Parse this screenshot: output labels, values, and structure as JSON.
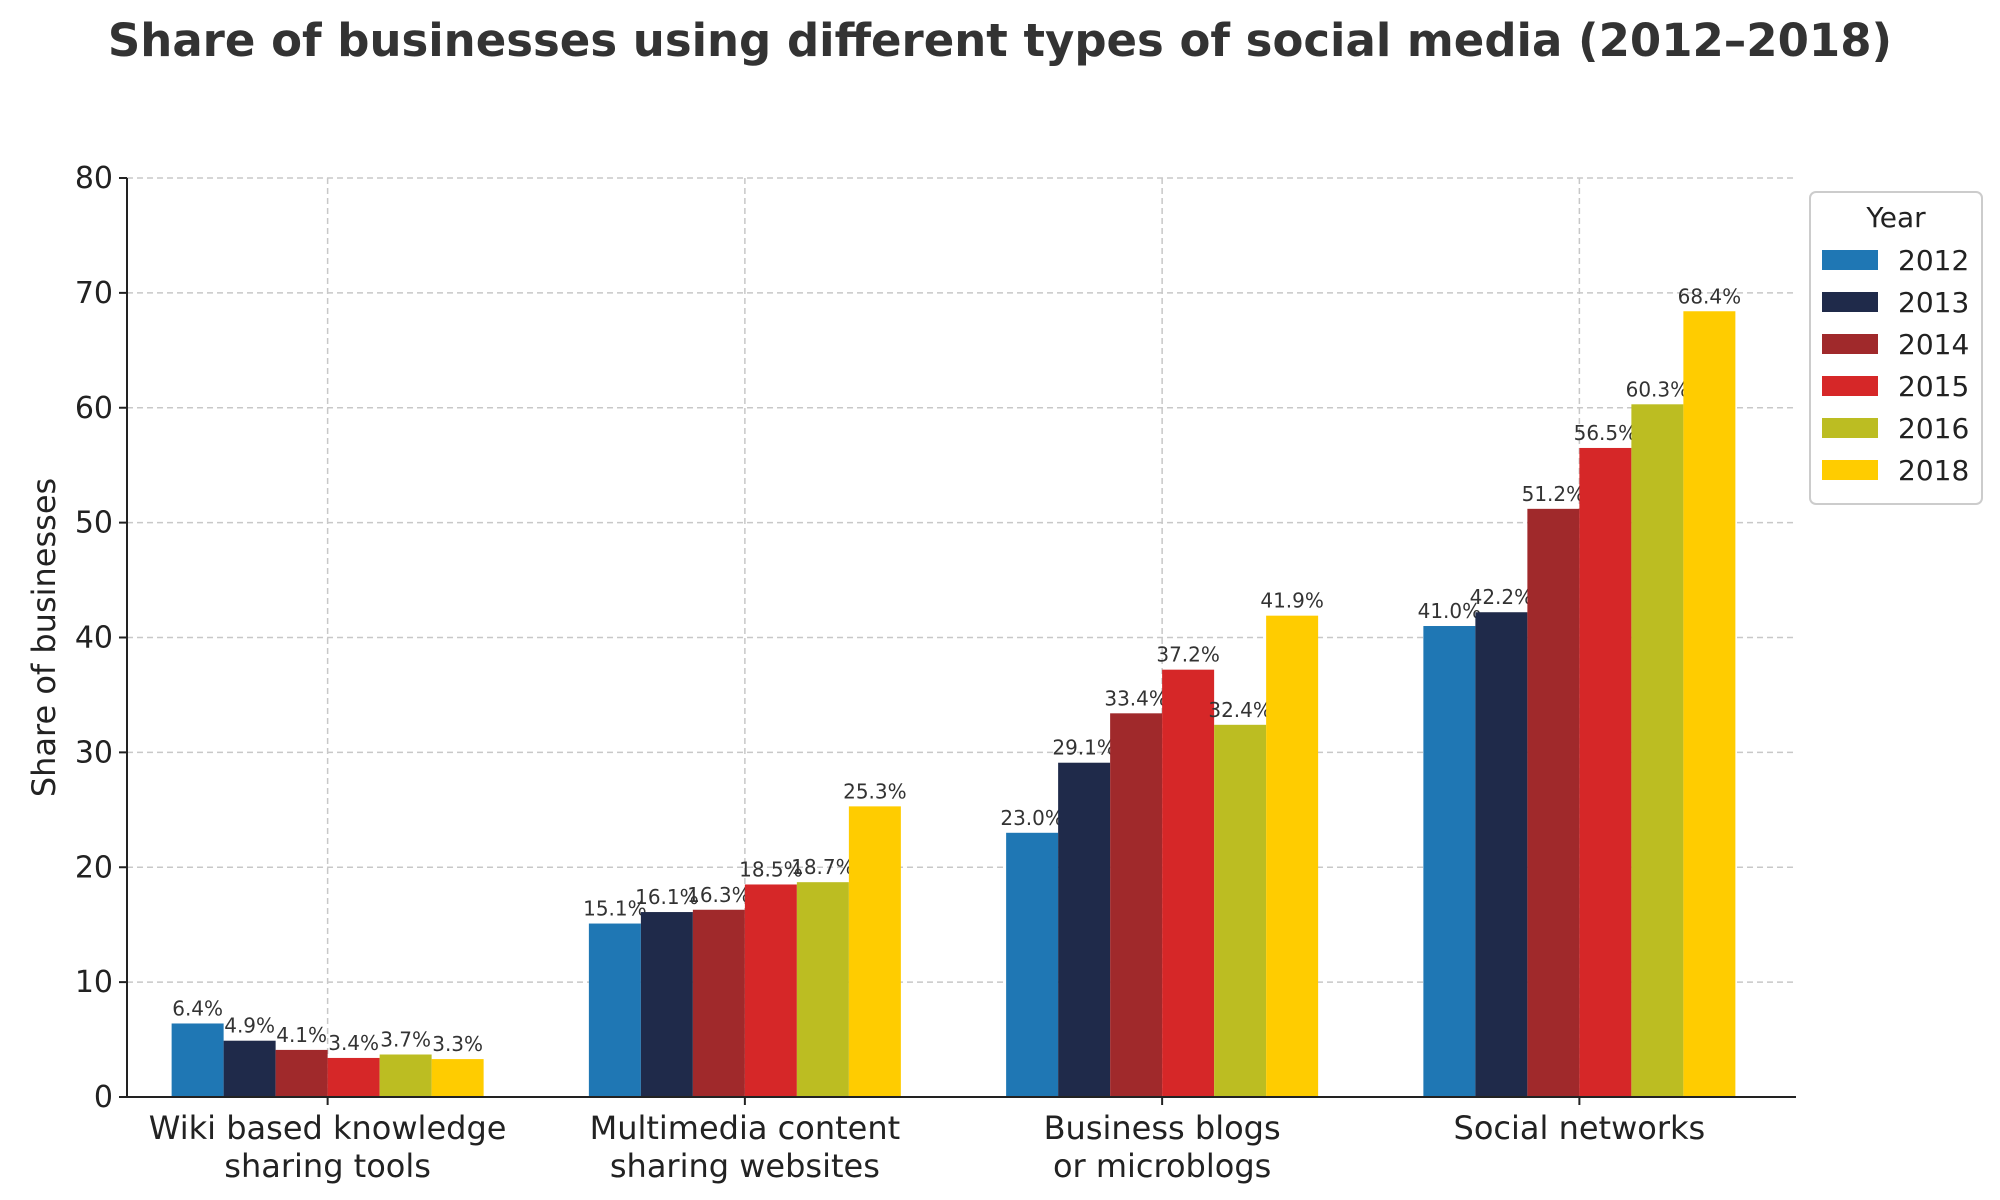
{
  "chart_data": {
    "type": "bar",
    "title": "Share of businesses using different types of social media (2012–2018)",
    "ylabel": "Share of businesses",
    "xlabel": "",
    "ylim": [
      0,
      80
    ],
    "yticks": [
      0,
      10,
      20,
      30,
      40,
      50,
      60,
      70,
      80
    ],
    "grid": true,
    "legend_title": "Year",
    "legend_position": "right",
    "categories": [
      [
        "Wiki based knowledge",
        "sharing tools"
      ],
      [
        "Multimedia content",
        "sharing websites"
      ],
      [
        "Business blogs",
        "or microblogs"
      ],
      [
        "Social networks"
      ]
    ],
    "series": [
      {
        "name": "2012",
        "color": "#1f77b4",
        "values": [
          6.4,
          15.1,
          23.0,
          41.0
        ]
      },
      {
        "name": "2013",
        "color": "#1f2a4a",
        "values": [
          4.9,
          16.1,
          29.1,
          42.2
        ]
      },
      {
        "name": "2014",
        "color": "#a0292b",
        "values": [
          4.1,
          16.3,
          33.4,
          51.2
        ]
      },
      {
        "name": "2015",
        "color": "#d62728",
        "values": [
          3.4,
          18.5,
          37.2,
          56.5
        ]
      },
      {
        "name": "2016",
        "color": "#bcbd22",
        "values": [
          3.7,
          18.7,
          32.4,
          60.3
        ]
      },
      {
        "name": "2018",
        "color": "#ffcc00",
        "values": [
          3.3,
          25.3,
          41.9,
          68.4
        ]
      }
    ],
    "value_suffix": "%"
  }
}
